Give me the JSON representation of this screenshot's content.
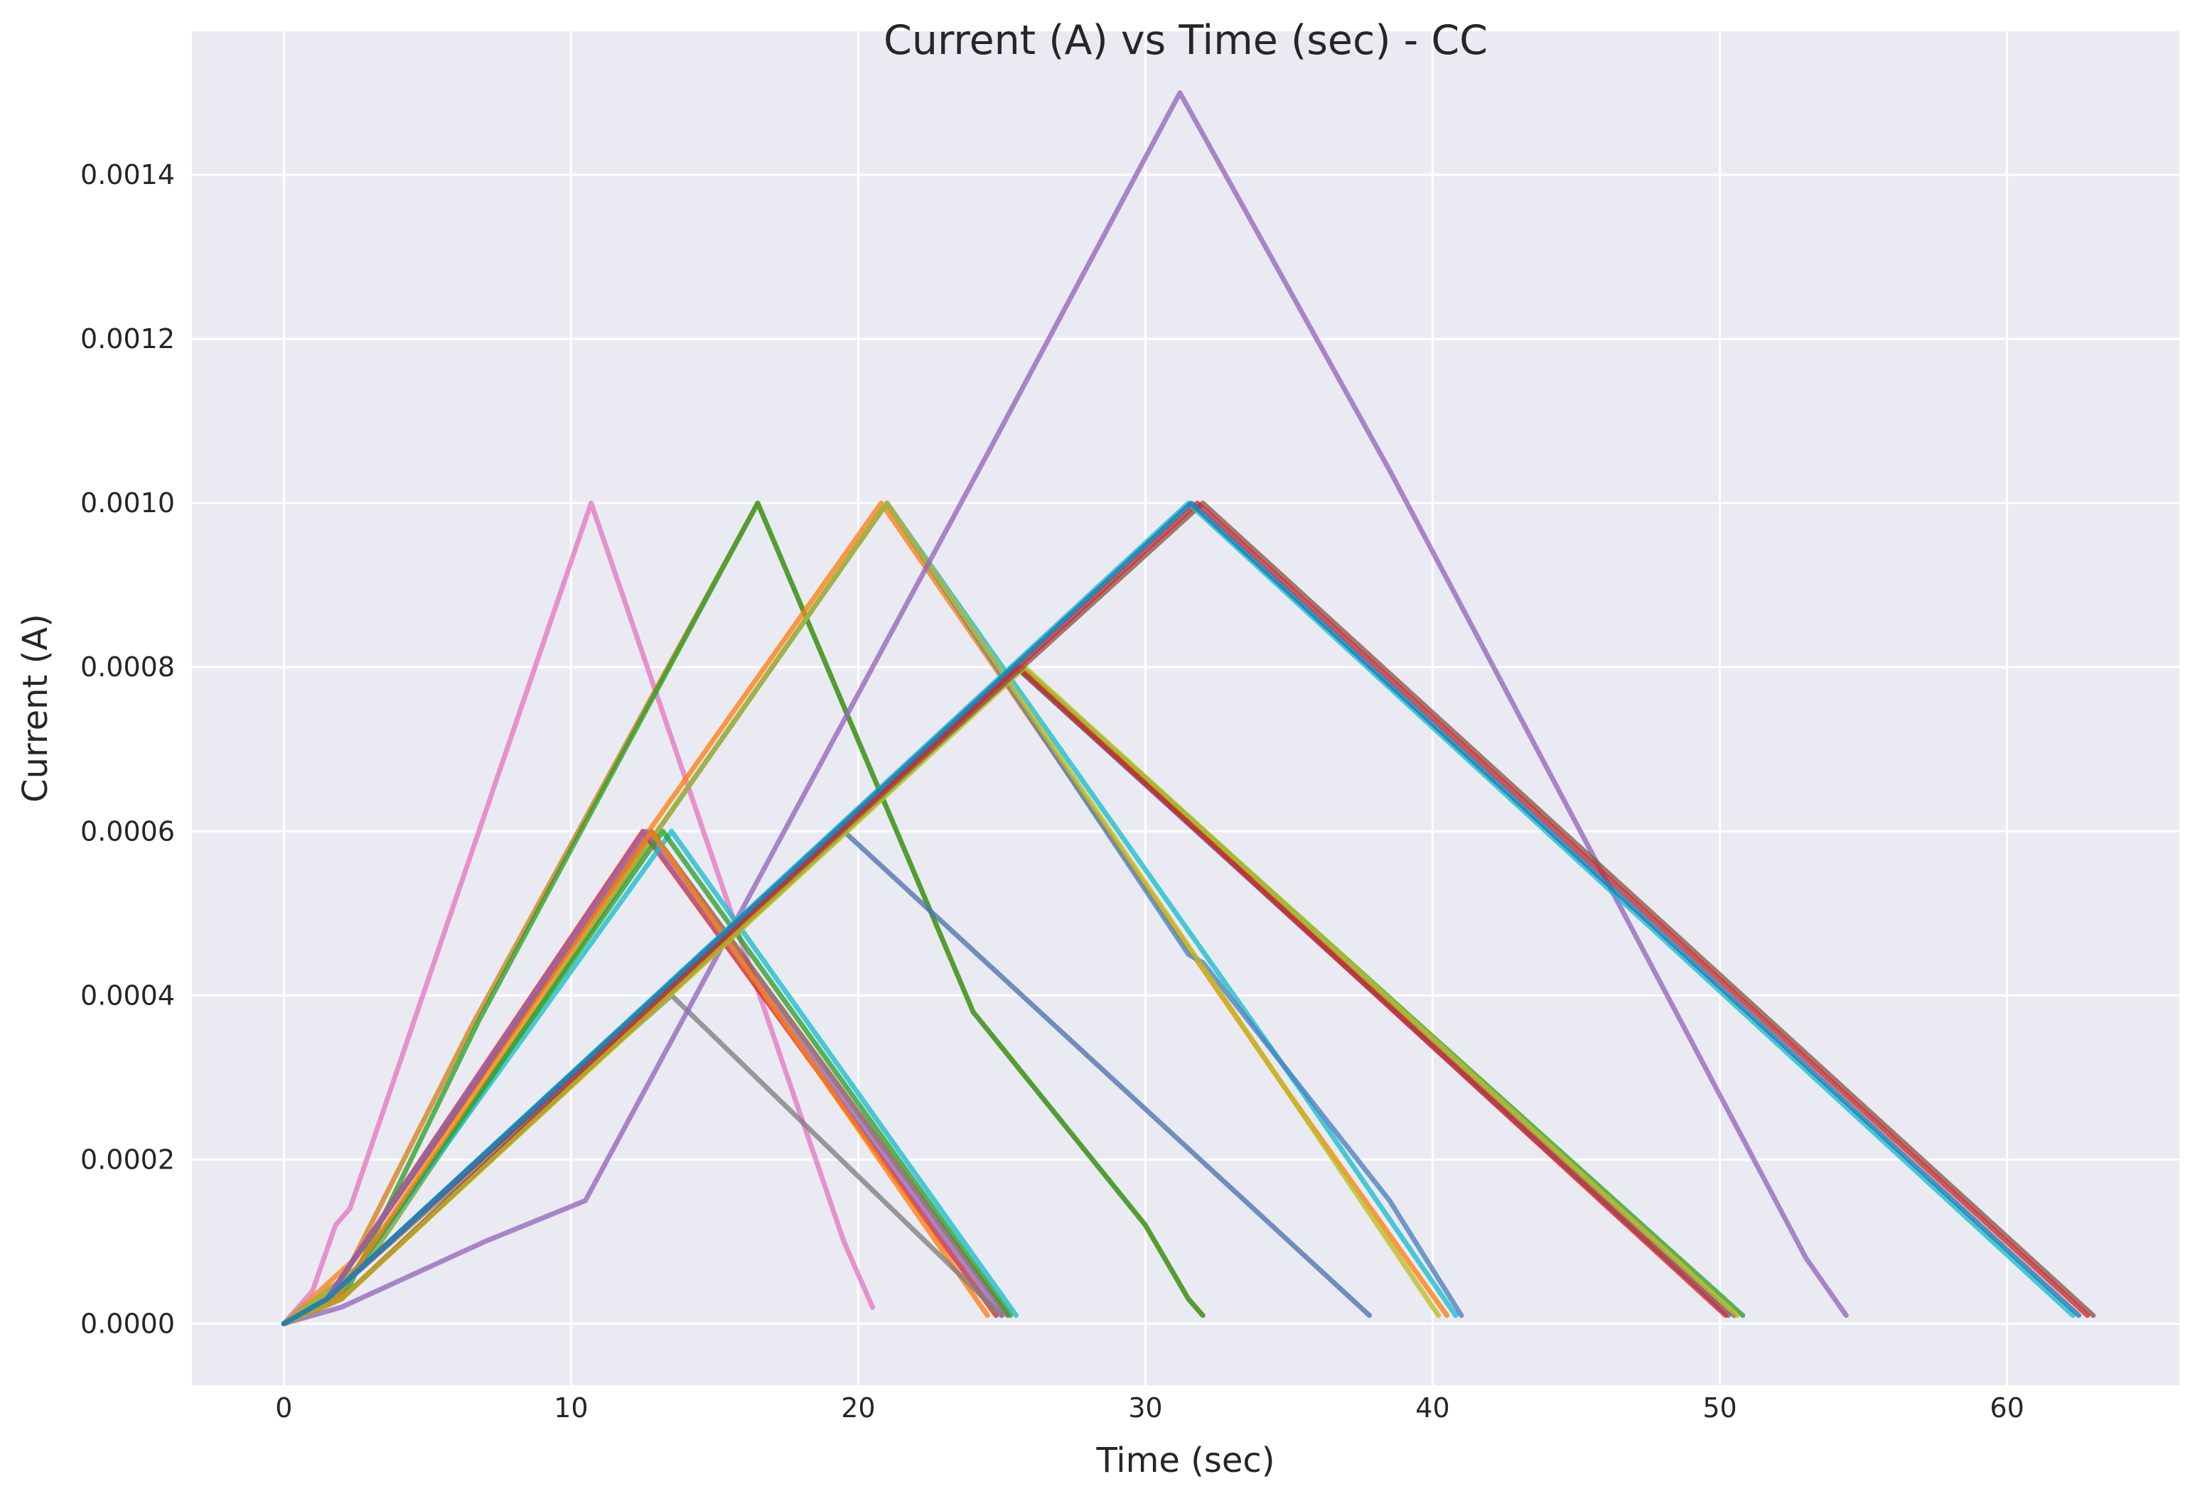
{
  "chart_data": {
    "type": "line",
    "title": "Current (A) vs Time (sec) - CC",
    "xlabel": "Time (sec)",
    "ylabel": "Current (A)",
    "xlim": [
      -3.2,
      66
    ],
    "ylim": [
      -7.5e-05,
      0.001575
    ],
    "xticks": [
      0,
      10,
      20,
      30,
      40,
      50,
      60
    ],
    "yticks": [
      0.0,
      0.0002,
      0.0004,
      0.0006,
      0.0008,
      0.001,
      0.0012,
      0.0014
    ],
    "ytick_labels": [
      "0.0000",
      "0.0002",
      "0.0004",
      "0.0006",
      "0.0008",
      "0.0010",
      "0.0012",
      "0.0014"
    ],
    "grid": true,
    "background": "#eaeaf2",
    "series": [
      {
        "color": "#e377c2",
        "x": [
          0,
          1.0,
          1.8,
          2.3,
          10.7,
          19.5,
          20.0,
          20.5
        ],
        "y": [
          0,
          4e-05,
          0.00012,
          0.00014,
          0.001,
          0.0001,
          6e-05,
          2e-05
        ]
      },
      {
        "color": "#d4801a",
        "x": [
          0,
          2.0,
          6.5,
          16.5,
          24.0,
          30.0,
          31.5,
          32.0
        ],
        "y": [
          0,
          5e-05,
          0.00036,
          0.001,
          0.00038,
          0.00012,
          3e-05,
          1e-05
        ]
      },
      {
        "color": "#2ca02c",
        "x": [
          0,
          2.2,
          6.8,
          16.5,
          24.0,
          30.0,
          31.5,
          32.0
        ],
        "y": [
          0,
          4e-05,
          0.00037,
          0.001,
          0.00038,
          0.00012,
          3e-05,
          1e-05
        ]
      },
      {
        "color": "#ff7f0e",
        "x": [
          0,
          2.5,
          12.7,
          20.8,
          35.0,
          40.5
        ],
        "y": [
          0,
          8e-05,
          0.0006,
          0.001,
          0.00028,
          1e-05
        ]
      },
      {
        "color": "#17becf",
        "x": [
          0,
          3.0,
          13.0,
          21.0,
          35.5,
          40.8
        ],
        "y": [
          0,
          8e-05,
          0.0006,
          0.001,
          0.00028,
          1e-05
        ]
      },
      {
        "color": "#4c7fc0",
        "x": [
          0,
          3.0,
          13.0,
          21.0,
          31.5,
          32.0,
          38.5,
          41.0
        ],
        "y": [
          0,
          8e-05,
          0.0006,
          0.001,
          0.00045,
          0.00044,
          0.00015,
          1e-05
        ]
      },
      {
        "color": "#bcbd22",
        "x": [
          0,
          3.0,
          13.0,
          21.0,
          35.0,
          40.2
        ],
        "y": [
          0,
          8e-05,
          0.0006,
          0.001,
          0.00028,
          1e-05
        ]
      },
      {
        "color": "#d62728",
        "x": [
          0,
          1.5,
          12.5,
          24.8
        ],
        "y": [
          0,
          3e-05,
          0.0006,
          1e-05
        ]
      },
      {
        "color": "#8c564b",
        "x": [
          0,
          1.5,
          12.8,
          25.2
        ],
        "y": [
          0,
          3e-05,
          0.0006,
          1e-05
        ]
      },
      {
        "color": "#9467bd",
        "x": [
          0,
          1.5,
          12.6,
          25.0
        ],
        "y": [
          0,
          3e-05,
          0.0006,
          1e-05
        ]
      },
      {
        "color": "#17becf",
        "x": [
          0,
          2.0,
          13.5,
          25.5
        ],
        "y": [
          0,
          4e-05,
          0.0006,
          1e-05
        ]
      },
      {
        "color": "#2ca02c",
        "x": [
          0,
          2.0,
          13.2,
          25.3
        ],
        "y": [
          0,
          4e-05,
          0.0006,
          1e-05
        ]
      },
      {
        "color": "#ff7f0e",
        "x": [
          0,
          1.8,
          12.8,
          24.5
        ],
        "y": [
          0,
          3e-05,
          0.0006,
          1e-05
        ]
      },
      {
        "color": "#7f7f7f",
        "x": [
          0,
          1.5,
          13.5,
          25.0
        ],
        "y": [
          0,
          3e-05,
          0.0004,
          1e-05
        ]
      },
      {
        "color": "#4c72b0",
        "x": [
          0,
          1.5,
          19.5,
          37.8
        ],
        "y": [
          0,
          3e-05,
          0.0006,
          1e-05
        ]
      },
      {
        "color": "#9467bd",
        "x": [
          0,
          2.0,
          7.0,
          10.5,
          24.5,
          31.2,
          38.5,
          53.0,
          54.4
        ],
        "y": [
          0,
          2e-05,
          0.0001,
          0.00015,
          0.00106,
          0.0015,
          0.00104,
          8e-05,
          1e-05
        ]
      },
      {
        "color": "#4c72b0",
        "x": [
          0,
          2.0,
          25.5,
          50.3
        ],
        "y": [
          0,
          3e-05,
          0.0008,
          1e-05
        ]
      },
      {
        "color": "#8c564b",
        "x": [
          0,
          2.0,
          25.5,
          50.5
        ],
        "y": [
          0,
          3e-05,
          0.0008,
          1e-05
        ]
      },
      {
        "color": "#2ca02c",
        "x": [
          0,
          2.0,
          25.7,
          50.8
        ],
        "y": [
          0,
          3e-05,
          0.0008,
          1e-05
        ]
      },
      {
        "color": "#d62728",
        "x": [
          0,
          2.0,
          25.6,
          50.2
        ],
        "y": [
          0,
          3e-05,
          0.0008,
          1e-05
        ]
      },
      {
        "color": "#bcbd22",
        "x": [
          0,
          2.0,
          25.8,
          50.6
        ],
        "y": [
          0,
          3e-05,
          0.0008,
          1e-05
        ]
      },
      {
        "color": "#8c564b",
        "x": [
          0,
          1.5,
          32.0,
          63.0
        ],
        "y": [
          0,
          3e-05,
          0.001,
          1e-05
        ]
      },
      {
        "color": "#d62728",
        "x": [
          0,
          1.5,
          31.8,
          62.8
        ],
        "y": [
          0,
          3e-05,
          0.001,
          1e-05
        ]
      },
      {
        "color": "#17becf",
        "x": [
          0,
          1.5,
          31.5,
          62.3
        ],
        "y": [
          0,
          3e-05,
          0.001,
          1e-05
        ]
      },
      {
        "color": "#1f77b4",
        "x": [
          0,
          1.5,
          31.6,
          62.5
        ],
        "y": [
          0,
          3e-05,
          0.001,
          1e-05
        ]
      }
    ]
  }
}
